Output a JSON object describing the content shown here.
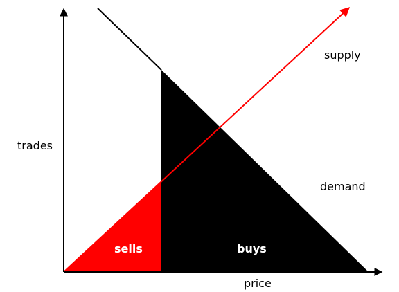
{
  "diagram": {
    "axes": {
      "y_label": "trades",
      "x_label": "price"
    },
    "curves": {
      "supply": {
        "label": "supply",
        "color": "#ff0000"
      },
      "demand": {
        "label": "demand",
        "color": "#000000"
      }
    },
    "regions": {
      "sells": {
        "label": "sells",
        "color": "#ff0000",
        "text_color": "#ffffff"
      },
      "buys": {
        "label": "buys",
        "color": "#000000",
        "text_color": "#ffffff"
      }
    }
  }
}
